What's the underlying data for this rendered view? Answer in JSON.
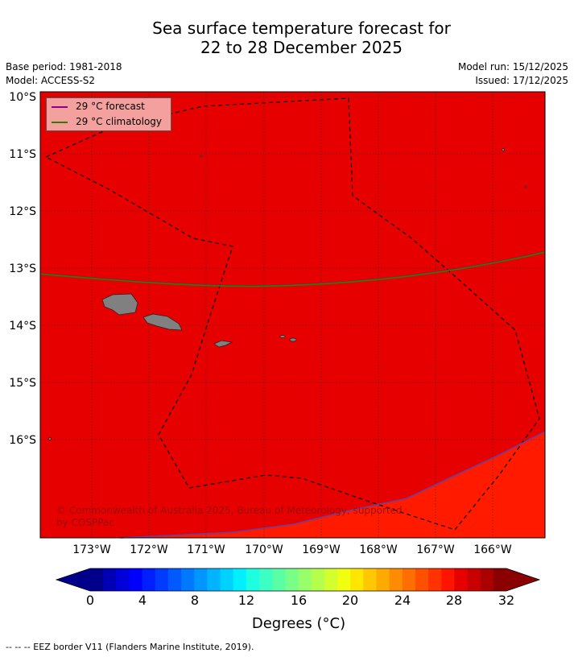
{
  "title": {
    "line1": "Sea surface temperature forecast for",
    "line2": "22 to 28 December 2025"
  },
  "meta": {
    "base_period": "Base period: 1981-2018",
    "model": "Model: ACCESS-S2",
    "model_run": "Model run: 15/12/2025",
    "issued": "Issued: 17/12/2025"
  },
  "map": {
    "lat_labels": [
      "10°S",
      "11°S",
      "12°S",
      "13°S",
      "14°S",
      "15°S",
      "16°S"
    ],
    "lon_labels": [
      "173°W",
      "172°W",
      "171°W",
      "170°W",
      "169°W",
      "168°W",
      "167°W",
      "166°W"
    ],
    "copyright": "© Commonwealth of Australia 2025, Bureau of Meteorology, supported",
    "copyright2": "by COSPPac",
    "colors": {
      "ocean_main": "#e60000",
      "ocean_warm": "#ff1a00",
      "land": "#808080",
      "grid": "#333333",
      "forecast_line": "#8b008b",
      "climatology_line": "#2e7d00"
    }
  },
  "legend": {
    "forecast": "29 °C  forecast",
    "climatology": "29 °C  climatology"
  },
  "colorbar": {
    "ticks": [
      "0",
      "4",
      "8",
      "12",
      "16",
      "20",
      "24",
      "28",
      "32"
    ],
    "units": "Degrees (°C)",
    "min": 0,
    "max": 32,
    "step": 1,
    "colors": [
      "#00008b",
      "#0000b4",
      "#0000dc",
      "#0000ff",
      "#001eff",
      "#003cff",
      "#005aff",
      "#0078ff",
      "#0096ff",
      "#00b4ff",
      "#00d2ff",
      "#00f0ff",
      "#1effe1",
      "#3cffc3",
      "#5affa5",
      "#78ff87",
      "#96ff69",
      "#b4ff4b",
      "#d2ff2d",
      "#f0ff0f",
      "#ffe600",
      "#ffc800",
      "#ffaa00",
      "#ff8c00",
      "#ff6e00",
      "#ff5000",
      "#ff3200",
      "#ff1400",
      "#e60000",
      "#c80000",
      "#aa0000",
      "#8b0000"
    ],
    "under_color": "#00008b",
    "over_color": "#8b0000"
  },
  "footer": "-- -- -- EEZ border V11 (Flanders Marine Institute, 2019)."
}
